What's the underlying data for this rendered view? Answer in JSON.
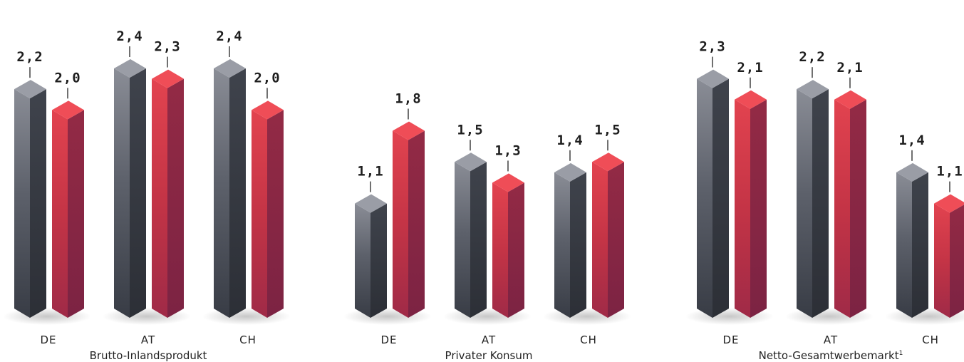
{
  "chart_data": [
    {
      "type": "bar",
      "title": "Brutto-Inlandsprodukt",
      "categories": [
        "DE",
        "AT",
        "CH"
      ],
      "series": [
        {
          "color": "#3c4049",
          "values": [
            2.2,
            2.4,
            2.4
          ]
        },
        {
          "color": "#d63347",
          "values": [
            2.0,
            2.3,
            2.0
          ]
        }
      ],
      "value_labels": [
        [
          "2,2",
          "2,4",
          "2,4"
        ],
        [
          "2,0",
          "2,3",
          "2,0"
        ]
      ],
      "ylim": [
        0,
        2.4
      ]
    },
    {
      "type": "bar",
      "title": "Privater Konsum",
      "categories": [
        "DE",
        "AT",
        "CH"
      ],
      "series": [
        {
          "color": "#3c4049",
          "values": [
            1.1,
            1.5,
            1.4
          ]
        },
        {
          "color": "#d63347",
          "values": [
            1.8,
            1.3,
            1.5
          ]
        }
      ],
      "value_labels": [
        [
          "1,1",
          "1,5",
          "1,4"
        ],
        [
          "1,8",
          "1,3",
          "1,5"
        ]
      ],
      "ylim": [
        0,
        2.4
      ]
    },
    {
      "type": "bar",
      "title": "Netto-Gesamtwerbemarkt",
      "title_sup": "1",
      "categories": [
        "DE",
        "AT",
        "CH"
      ],
      "series": [
        {
          "color": "#3c4049",
          "values": [
            2.3,
            2.2,
            1.4
          ]
        },
        {
          "color": "#d63347",
          "values": [
            2.1,
            2.1,
            1.1
          ]
        }
      ],
      "value_labels": [
        [
          "2,3",
          "2,2",
          "1,4"
        ],
        [
          "2,1",
          "2,1",
          "1,1"
        ]
      ],
      "ylim": [
        0,
        2.4
      ]
    }
  ]
}
